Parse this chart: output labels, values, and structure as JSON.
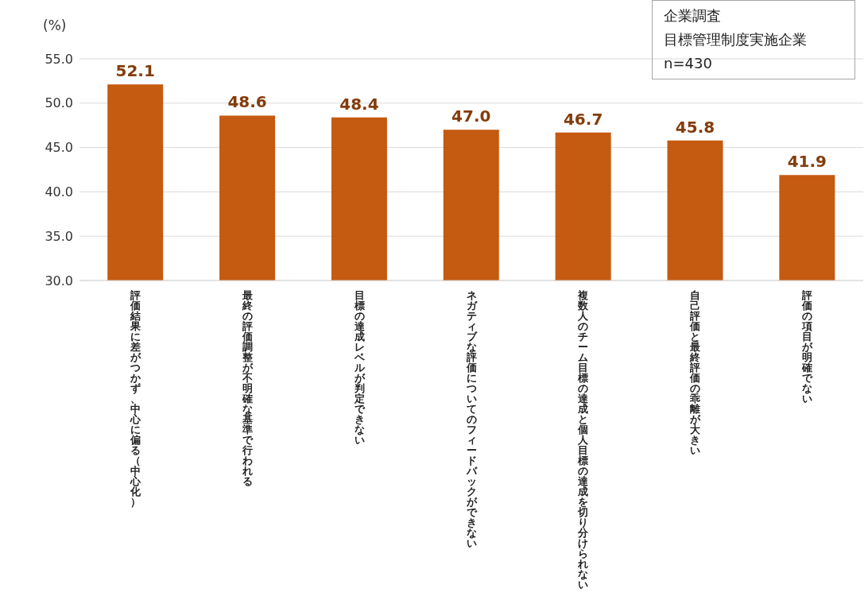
{
  "chart_data": {
    "type": "bar",
    "ylabel": "(%)",
    "categories": [
      "評価結果に差がつかず、中心に偏る（中心化）",
      "最終の評価調整が不明確な基準で行われる",
      "目標の達成レベルが判定できない",
      "ネガティブな評価についてのフィードバックができない",
      "複数人のチーム目標の達成と個人目標の達成を切り分けられない",
      "自己評価と最終評価の乖離が大きい",
      "評価の項目が明確でない"
    ],
    "values": [
      52.1,
      48.6,
      48.4,
      47.0,
      46.7,
      45.8,
      41.9
    ],
    "value_labels": [
      "52.1",
      "48.6",
      "48.4",
      "47.0",
      "46.7",
      "45.8",
      "41.9"
    ],
    "color": "#c55a11",
    "ylim": [
      30,
      55
    ],
    "yticks": [
      {
        "value": 30,
        "label": "30.0"
      },
      {
        "value": 35,
        "label": "35.0"
      },
      {
        "value": 40,
        "label": "40.0"
      },
      {
        "value": 45,
        "label": "45.0"
      },
      {
        "value": 50,
        "label": "50.0"
      },
      {
        "value": 55,
        "label": "55.0"
      }
    ],
    "grid": "y",
    "annotations": [
      "企業調査",
      "目標管理制度実施企業",
      "n=430"
    ]
  }
}
